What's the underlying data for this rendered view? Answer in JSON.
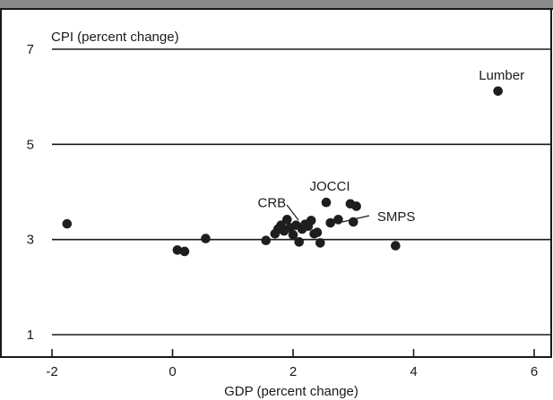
{
  "chart_data": {
    "type": "scatter",
    "xlabel": "GDP (percent change)",
    "ylabel": "CPI (percent change)",
    "xlim": [
      -2.4,
      6.4
    ],
    "ylim": [
      0.5,
      7.5
    ],
    "x_ticks": [
      -2,
      0,
      2,
      4,
      6
    ],
    "y_ticks": [
      1,
      3,
      5,
      7
    ],
    "gridlines": "horizontal at y ticks",
    "points": [
      {
        "x": -1.75,
        "y": 3.33
      },
      {
        "x": 0.08,
        "y": 2.78
      },
      {
        "x": 0.2,
        "y": 2.75
      },
      {
        "x": 0.55,
        "y": 3.02
      },
      {
        "x": 1.55,
        "y": 2.98
      },
      {
        "x": 1.7,
        "y": 3.12
      },
      {
        "x": 1.75,
        "y": 3.22
      },
      {
        "x": 1.8,
        "y": 3.3
      },
      {
        "x": 1.85,
        "y": 3.18
      },
      {
        "x": 1.9,
        "y": 3.42
      },
      {
        "x": 1.95,
        "y": 3.25
      },
      {
        "x": 2.0,
        "y": 3.1
      },
      {
        "x": 2.05,
        "y": 3.3
      },
      {
        "x": 2.1,
        "y": 2.95
      },
      {
        "x": 2.15,
        "y": 3.22
      },
      {
        "x": 2.2,
        "y": 3.32
      },
      {
        "x": 2.25,
        "y": 3.28
      },
      {
        "x": 2.3,
        "y": 3.4
      },
      {
        "x": 2.35,
        "y": 3.12
      },
      {
        "x": 2.4,
        "y": 3.15
      },
      {
        "x": 2.45,
        "y": 2.93
      },
      {
        "x": 2.55,
        "y": 3.78
      },
      {
        "x": 2.62,
        "y": 3.35
      },
      {
        "x": 2.75,
        "y": 3.42
      },
      {
        "x": 2.95,
        "y": 3.75
      },
      {
        "x": 3.0,
        "y": 3.37
      },
      {
        "x": 3.05,
        "y": 3.7
      },
      {
        "x": 3.7,
        "y": 2.87
      },
      {
        "x": 5.4,
        "y": 6.12
      }
    ],
    "annotations": [
      {
        "text": "Lumber",
        "x": 5.4,
        "y": 6.12
      },
      {
        "text": "JOCCI",
        "x": 2.55,
        "y": 3.78
      },
      {
        "text": "SMPS",
        "x": 2.85,
        "y": 3.5
      },
      {
        "text": "CRB",
        "x": 2.05,
        "y": 3.3
      }
    ]
  }
}
